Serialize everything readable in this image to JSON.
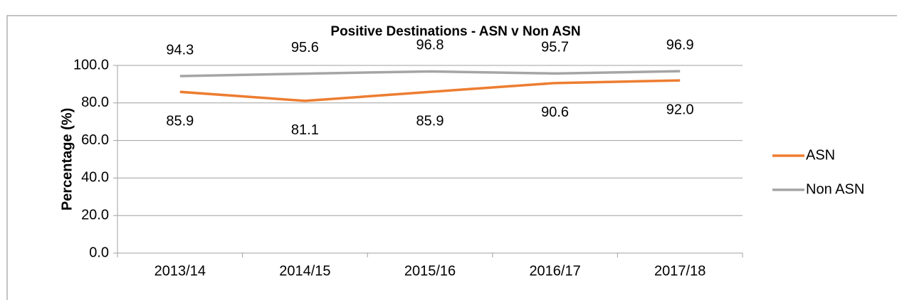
{
  "chart_data": {
    "type": "line",
    "title": "Positive Destinations - ASN v Non ASN",
    "y_label": "Percentage (%)",
    "categories": [
      "2013/14",
      "2014/15",
      "2015/16",
      "2016/17",
      "2017/18"
    ],
    "series": [
      {
        "name": "ASN",
        "color": "#ed7d31",
        "values": [
          85.9,
          81.1,
          85.9,
          90.6,
          92.0
        ],
        "value_labels": [
          "85.9",
          "81.1",
          "85.9",
          "90.6",
          "92.0"
        ]
      },
      {
        "name": "Non ASN",
        "color": "#a5a5a5",
        "values": [
          94.3,
          95.6,
          96.8,
          95.7,
          96.9
        ]
      }
    ],
    "ylim": [
      0,
      100
    ],
    "yticks": [
      {
        "value": 0,
        "label": "0.0"
      },
      {
        "value": 20,
        "label": "20.0"
      },
      {
        "value": 40,
        "label": "40.0"
      },
      {
        "value": 60,
        "label": "60.0"
      },
      {
        "value": 80,
        "label": "80.0"
      },
      {
        "value": 100,
        "label": "100.0"
      }
    ],
    "grid": true,
    "legend": "right"
  }
}
